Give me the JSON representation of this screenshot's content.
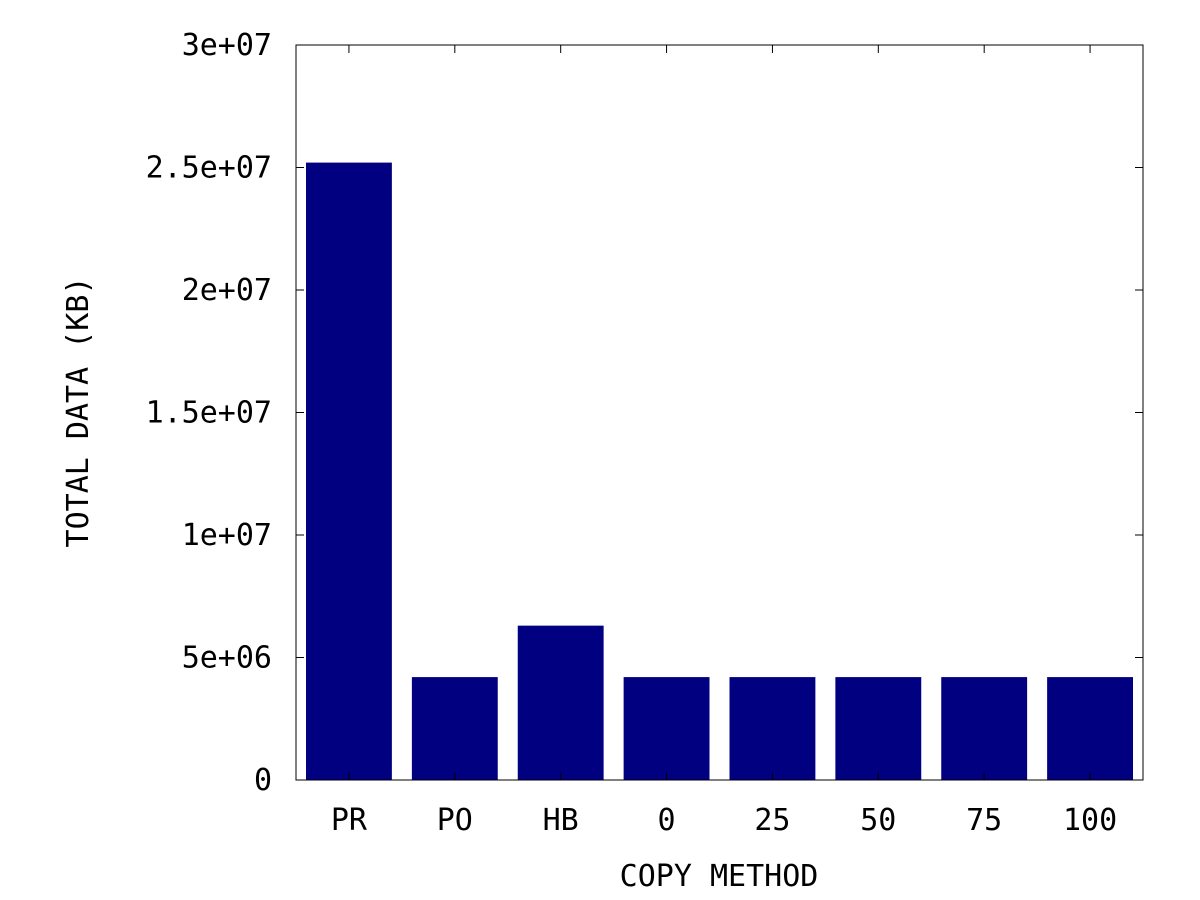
{
  "chart_data": {
    "type": "bar",
    "title": "",
    "xlabel": "COPY METHOD",
    "ylabel": "TOTAL DATA (KB)",
    "categories": [
      "PR",
      "PO",
      "HB",
      "0",
      "25",
      "50",
      "75",
      "100"
    ],
    "values": [
      25200000,
      4200000,
      6300000,
      4200000,
      4200000,
      4200000,
      4200000,
      4200000
    ],
    "ylim": [
      0,
      30000000
    ],
    "yticks": [
      0,
      5000000,
      10000000,
      15000000,
      20000000,
      25000000,
      30000000
    ],
    "ytick_labels": [
      "0",
      "5e+06",
      "1e+07",
      "1.5e+07",
      "2e+07",
      "2.5e+07",
      "3e+07"
    ],
    "grid": false,
    "legend": "none",
    "bar_color": "#000080"
  }
}
